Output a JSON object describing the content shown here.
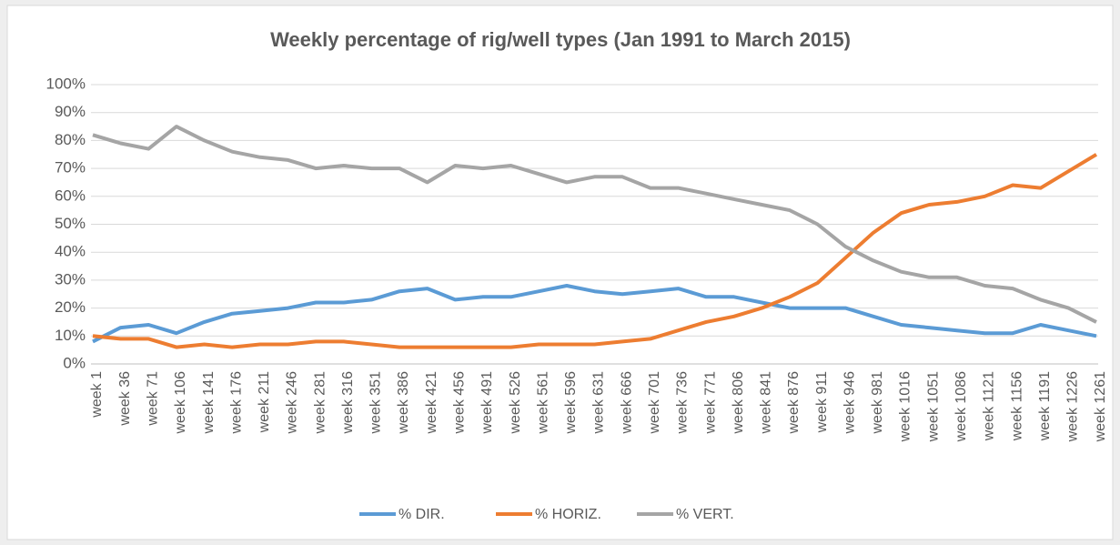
{
  "chart_data": {
    "type": "line",
    "title": "Weekly percentage of rig/well types (Jan 1991 to March 2015)",
    "categories": [
      "week 1",
      "week 36",
      "week 71",
      "week 106",
      "week 141",
      "week 176",
      "week 211",
      "week 246",
      "week 281",
      "week 316",
      "week 351",
      "week 386",
      "week 421",
      "week 456",
      "week 491",
      "week 526",
      "week 561",
      "week 596",
      "week 631",
      "week 666",
      "week 701",
      "week 736",
      "week 771",
      "week 806",
      "week 841",
      "week 876",
      "week 911",
      "week 946",
      "week 981",
      "week 1016",
      "week 1051",
      "week 1086",
      "week 1121",
      "week 1156",
      "week 1191",
      "week 1226",
      "week 1261"
    ],
    "series": [
      {
        "name": "% DIR.",
        "color": "#5b9bd5",
        "values": [
          8,
          13,
          14,
          11,
          15,
          18,
          19,
          20,
          22,
          22,
          23,
          26,
          27,
          23,
          24,
          24,
          26,
          28,
          26,
          25,
          26,
          27,
          24,
          24,
          22,
          20,
          20,
          20,
          17,
          14,
          13,
          12,
          11,
          11,
          14,
          12,
          10
        ]
      },
      {
        "name": "% HORIZ.",
        "color": "#ed7d31",
        "values": [
          10,
          9,
          9,
          6,
          7,
          6,
          7,
          7,
          8,
          8,
          7,
          6,
          6,
          6,
          6,
          6,
          7,
          7,
          7,
          8,
          9,
          12,
          15,
          17,
          20,
          24,
          29,
          38,
          47,
          54,
          57,
          58,
          60,
          64,
          63,
          69,
          75
        ]
      },
      {
        "name": "% VERT.",
        "color": "#a5a5a5",
        "values": [
          82,
          79,
          77,
          85,
          80,
          76,
          74,
          73,
          70,
          71,
          70,
          70,
          65,
          71,
          70,
          71,
          68,
          65,
          67,
          67,
          63,
          63,
          61,
          59,
          57,
          55,
          50,
          42,
          37,
          33,
          31,
          31,
          28,
          27,
          23,
          20,
          15
        ]
      }
    ],
    "ylim": [
      0,
      100
    ],
    "yticks": [
      {
        "value": 0,
        "label": "0%"
      },
      {
        "value": 10,
        "label": "10%"
      },
      {
        "value": 20,
        "label": "20%"
      },
      {
        "value": 30,
        "label": "30%"
      },
      {
        "value": 40,
        "label": "40%"
      },
      {
        "value": 50,
        "label": "50%"
      },
      {
        "value": 60,
        "label": "60%"
      },
      {
        "value": 70,
        "label": "70%"
      },
      {
        "value": 80,
        "label": "80%"
      },
      {
        "value": 90,
        "label": "90%"
      },
      {
        "value": 100,
        "label": "100%"
      }
    ],
    "grid": true,
    "legend": "bottom"
  }
}
